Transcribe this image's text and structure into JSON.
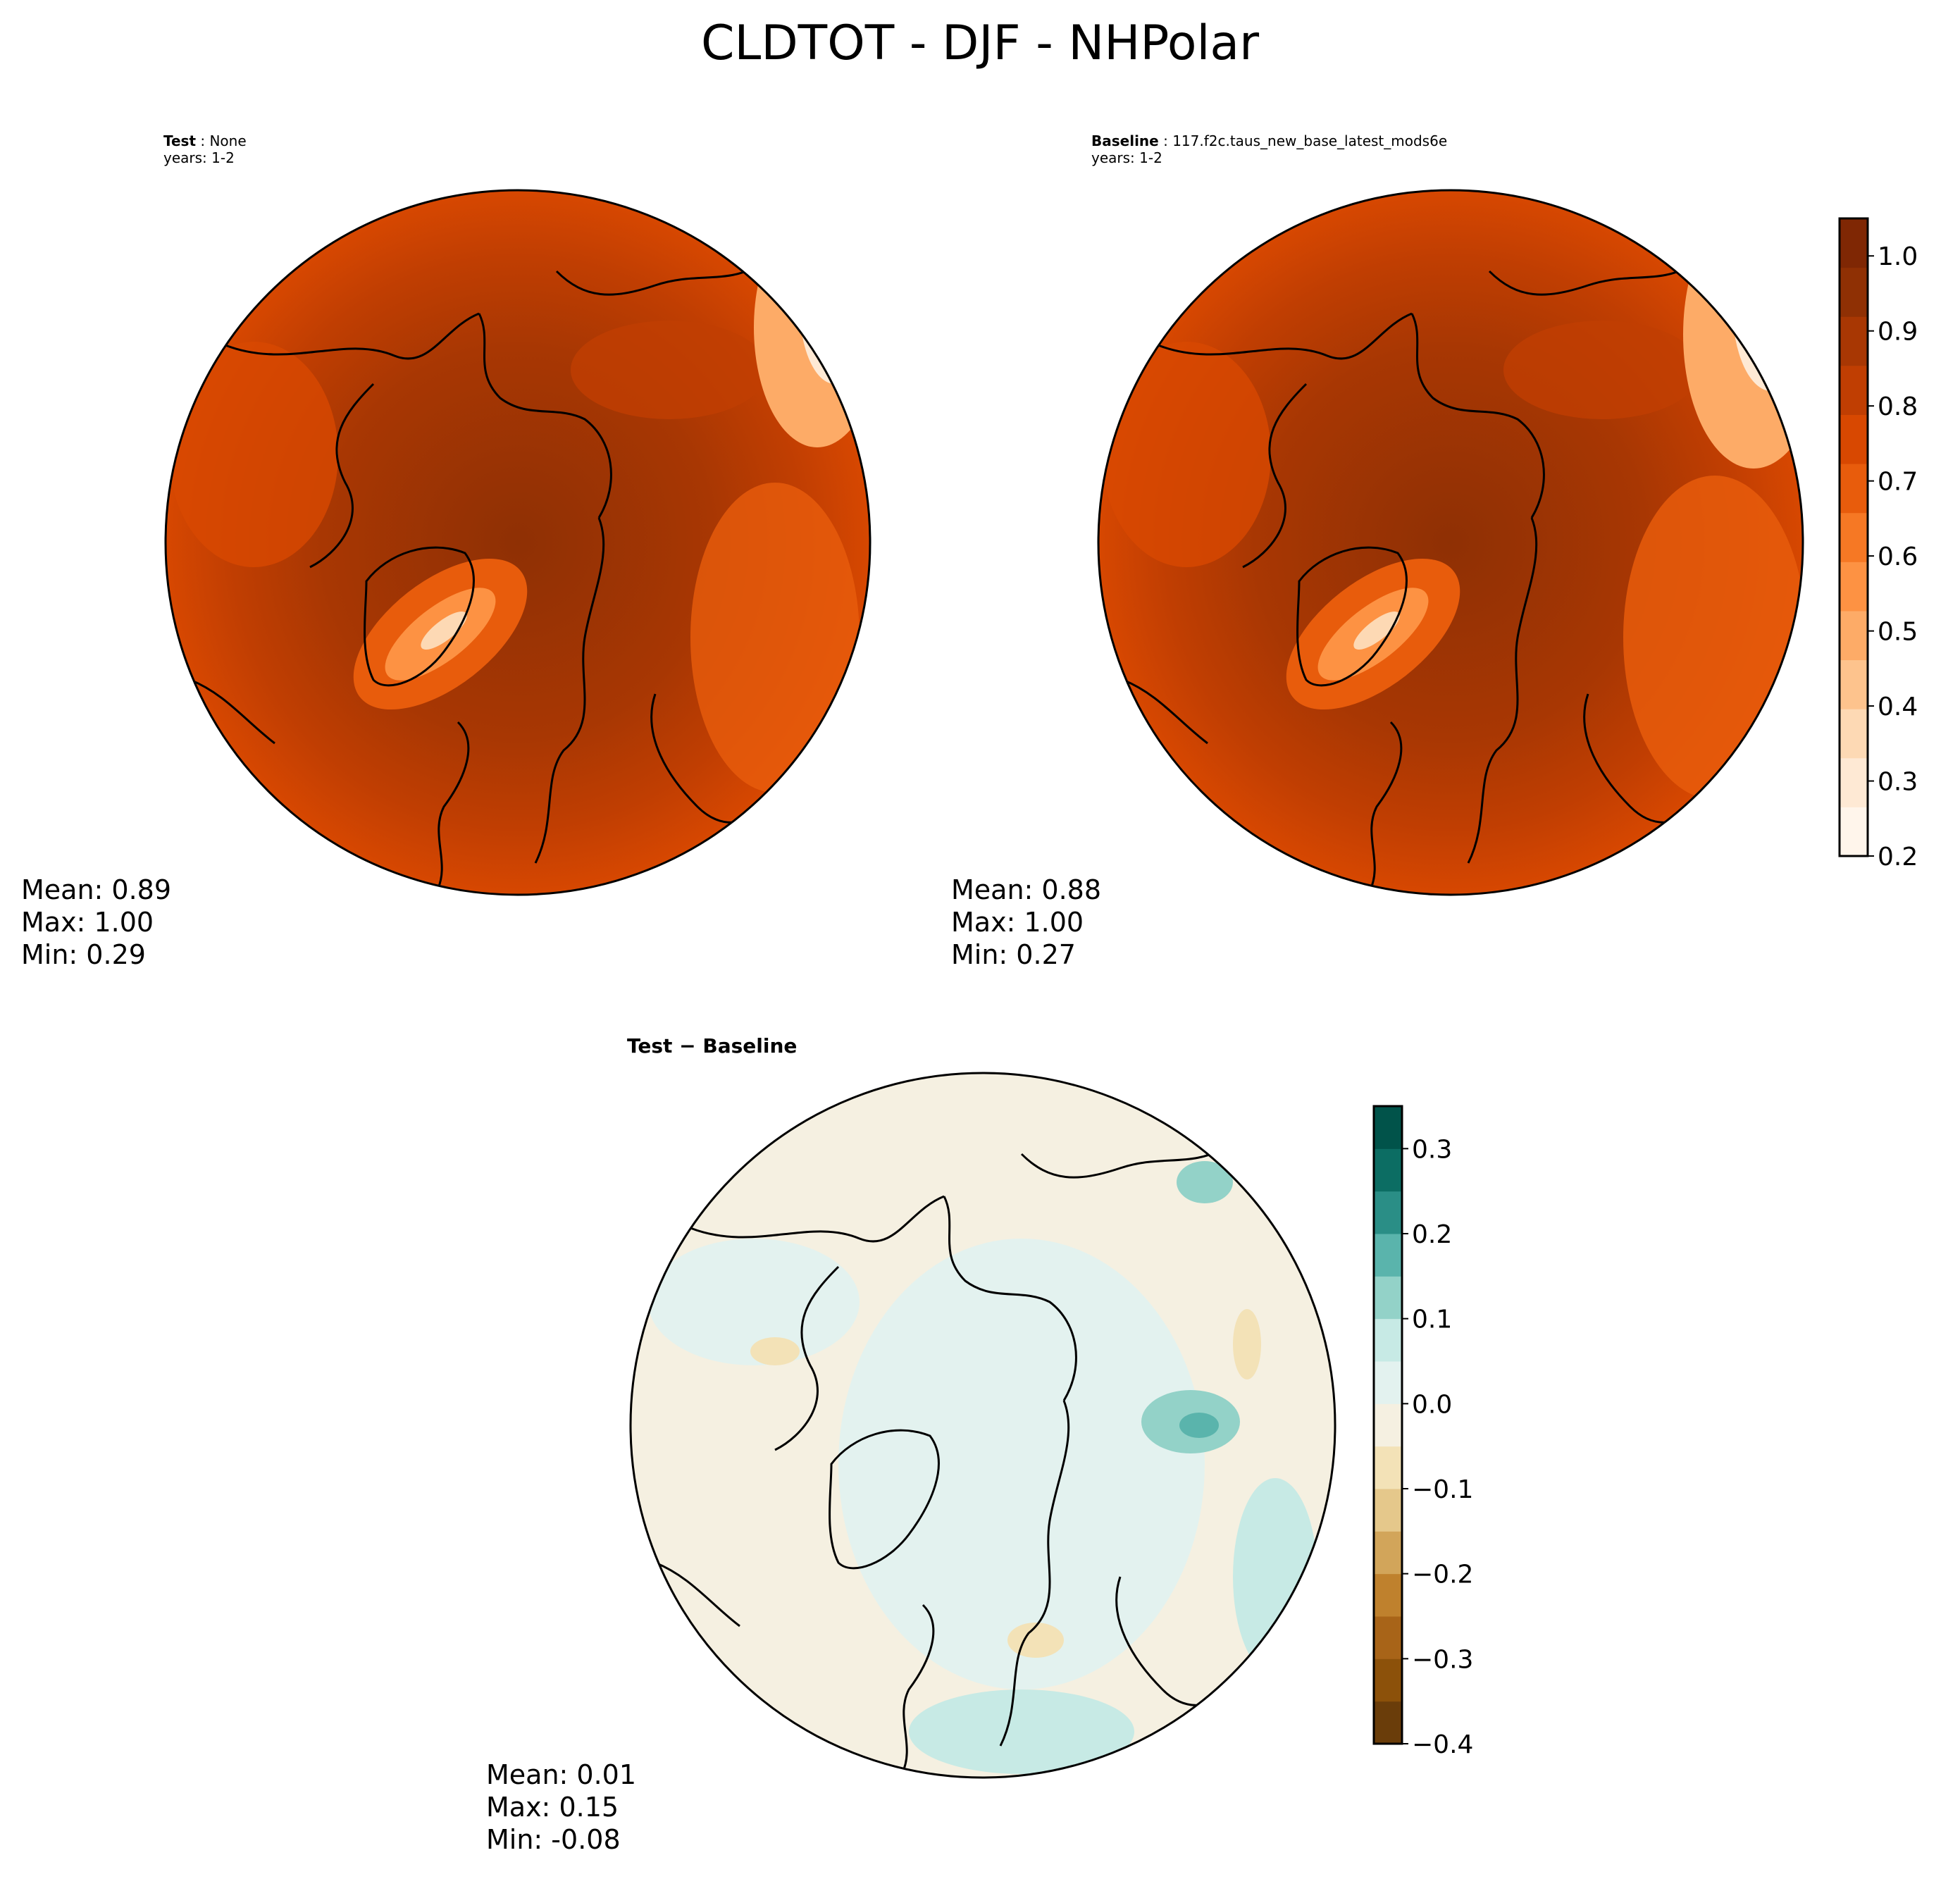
{
  "title": "CLDTOT - DJF - NHPolar",
  "panels": {
    "test": {
      "label_bold": "Test",
      "label_rest": " : None",
      "years": "years: 1-2",
      "stats": [
        "Mean:  0.89",
        "Max:  1.00",
        "Min:  0.29"
      ]
    },
    "baseline": {
      "label_bold": "Baseline",
      "label_rest": " : 117.f2c.taus_new_base_latest_mods6e",
      "years": "years: 1-2",
      "stats": [
        "Mean:  0.88",
        "Max:  1.00",
        "Min:  0.27"
      ]
    },
    "diff": {
      "label": "Test − Baseline",
      "stats": [
        "Mean:  0.01",
        "Max:  0.15",
        "Min: -0.08"
      ]
    }
  },
  "colorbars": {
    "abs": {
      "range": [
        0.2,
        1.05
      ],
      "ticks": [
        "0.2",
        "0.3",
        "0.4",
        "0.5",
        "0.6",
        "0.7",
        "0.8",
        "0.9",
        "1.0"
      ],
      "tick_values": [
        0.2,
        0.3,
        0.4,
        0.5,
        0.6,
        0.7,
        0.8,
        0.9,
        1.0
      ],
      "colors": [
        "#fff5eb",
        "#fee9d4",
        "#fdd9b4",
        "#fdc38d",
        "#fdab67",
        "#fd9243",
        "#f67824",
        "#e85c0c",
        "#d84801",
        "#c03e02",
        "#a83703",
        "#8f3004",
        "#7f2704"
      ]
    },
    "diff": {
      "range": [
        -0.4,
        0.35
      ],
      "ticks": [
        "0.3",
        "0.2",
        "0.1",
        "0.0",
        "−0.1",
        "−0.2",
        "−0.3",
        "−0.4"
      ],
      "tick_values": [
        0.3,
        0.2,
        0.1,
        0.0,
        -0.1,
        -0.2,
        -0.3,
        -0.4
      ],
      "colors": [
        "#6a3d0a",
        "#8c510a",
        "#a86418",
        "#bf812d",
        "#d2a55a",
        "#e5c88b",
        "#f3e2b7",
        "#f5f0e1",
        "#e3f2ef",
        "#c7eae5",
        "#93d2c8",
        "#5ab4ac",
        "#2a8e86",
        "#0c6d63",
        "#01534a"
      ]
    }
  },
  "chart_data": {
    "type": "heatmap",
    "title": "CLDTOT - DJF - NHPolar",
    "projection": "north polar stereographic",
    "variable": "CLDTOT",
    "season": "DJF",
    "panels": [
      {
        "name": "Test",
        "case": "None",
        "years": "1-2",
        "mean": 0.89,
        "max": 1.0,
        "min": 0.29,
        "colorbar_range": [
          0.2,
          1.05
        ]
      },
      {
        "name": "Baseline",
        "case": "117.f2c.taus_new_base_latest_mods6e",
        "years": "1-2",
        "mean": 0.88,
        "max": 1.0,
        "min": 0.27,
        "colorbar_range": [
          0.2,
          1.05
        ]
      },
      {
        "name": "Test − Baseline",
        "mean": 0.01,
        "max": 0.15,
        "min": -0.08,
        "colorbar_range": [
          -0.4,
          0.35
        ]
      }
    ]
  }
}
